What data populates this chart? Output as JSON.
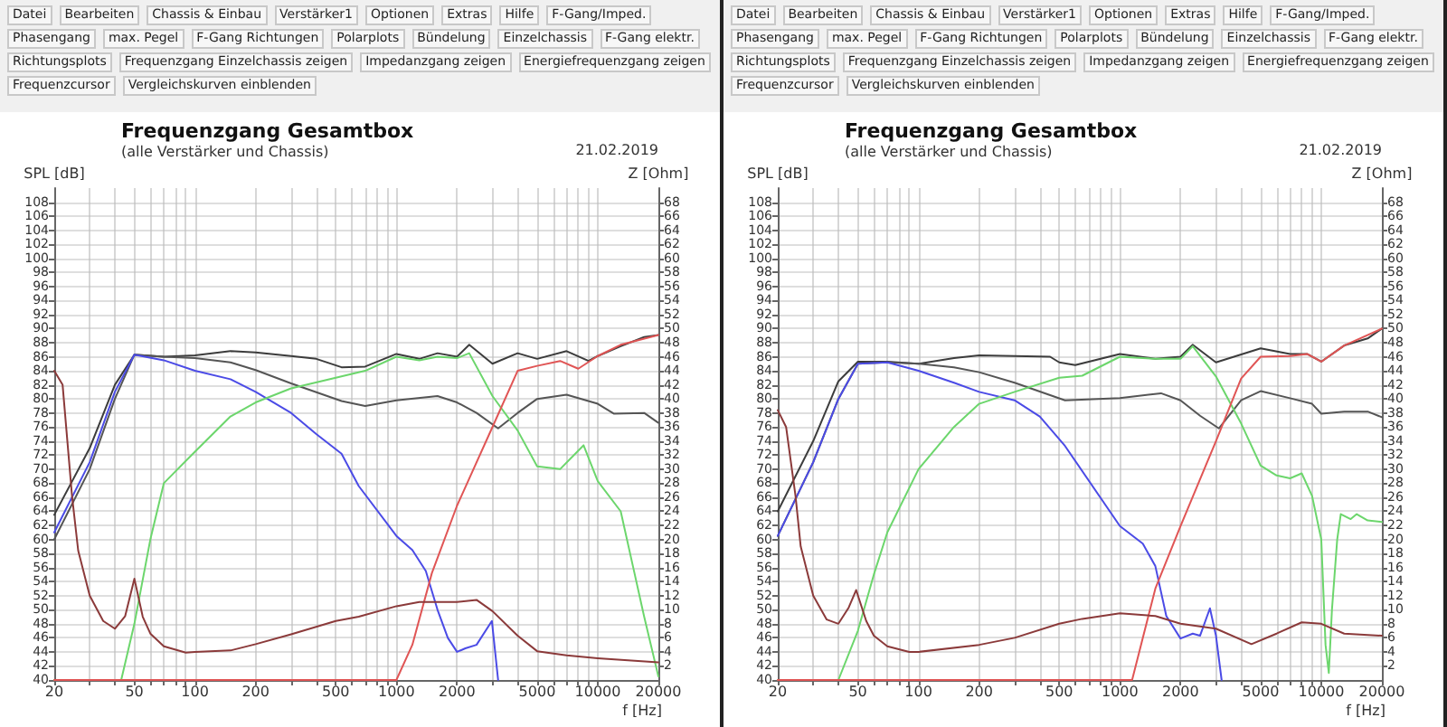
{
  "chart_data": [
    {
      "type": "line",
      "title": "Frequenzgang Gesamtbox",
      "subtitle": "(alle Verstärker und Chassis)",
      "xlabel": "f [Hz]",
      "ylabel": "SPL [dB]",
      "y2label": "Z [Ohm]",
      "annotations": [
        "21.02.2019",
        "Datei",
        "Bearbeiten",
        "Chassis & Einbau",
        "Verstärker1",
        "Optionen",
        "Extras",
        "Hilfe",
        "F-Gang/Imped.",
        "Phasengang",
        "max. Pegel",
        "F-Gang Richtungen",
        "Polarplots",
        "Bündelung",
        "Einzelchassis",
        "F-Gang elektr.",
        "Richtungsplots",
        "Frequenzgang Einzelchassis zeigen",
        "Impedanzgang zeigen",
        "Energiefrequenzgang zeigen",
        "Frequenzcursor",
        "Vergleichskurven einblenden"
      ],
      "log": "x",
      "grid": true,
      "marker": "none",
      "line_style": "solid",
      "xlim": [
        20,
        20000
      ],
      "xticks": [
        20,
        {
          "value": 30,
          "label": null
        },
        {
          "value": 40,
          "label": null
        },
        50,
        {
          "value": 60,
          "label": null
        },
        {
          "value": 70,
          "label": null
        },
        {
          "value": 80,
          "label": null
        },
        {
          "value": 90,
          "label": null
        },
        100,
        200,
        {
          "value": 300,
          "label": null
        },
        {
          "value": 400,
          "label": null
        },
        500,
        {
          "value": 600,
          "label": null
        },
        {
          "value": 700,
          "label": null
        },
        {
          "value": 800,
          "label": null
        },
        {
          "value": 900,
          "label": null
        },
        1000,
        2000,
        {
          "value": 3000,
          "label": null
        },
        {
          "value": 4000,
          "label": null
        },
        5000,
        {
          "value": 6000,
          "label": null
        },
        {
          "value": 7000,
          "label": null
        },
        {
          "value": 8000,
          "label": null
        },
        {
          "value": 9000,
          "label": null
        },
        10000,
        20000
      ],
      "ylim": [
        40,
        110
      ],
      "yticks": [
        40,
        42,
        44,
        46,
        48,
        50,
        52,
        54,
        56,
        58,
        60,
        62,
        64,
        66,
        68,
        70,
        72,
        74,
        76,
        78,
        80,
        82,
        84,
        86,
        88,
        90,
        92,
        94,
        96,
        98,
        100,
        102,
        104,
        106,
        108
      ],
      "y2lim": [
        0,
        70
      ],
      "y2ticks": [
        2,
        4,
        6,
        8,
        10,
        12,
        14,
        16,
        18,
        20,
        22,
        24,
        26,
        28,
        30,
        32,
        34,
        36,
        38,
        40,
        42,
        44,
        46,
        48,
        50,
        52,
        54,
        56,
        58,
        60,
        62,
        64,
        66,
        68
      ],
      "series": [
        {
          "color": "#3c3c3c",
          "x": [
            20,
            30,
            40,
            50,
            70,
            100,
            150,
            200,
            300,
            400,
            534,
            700,
            1000,
            1300,
            1600,
            2000,
            2300,
            3000,
            4000,
            5000,
            7000,
            9000,
            10000,
            13000,
            17000,
            20000
          ],
          "values": [
            63.5,
            73,
            82,
            86.3,
            86,
            86.2,
            86.8,
            86.6,
            86.1,
            85.7,
            84.5,
            84.6,
            86.4,
            85.7,
            86.5,
            86,
            87.7,
            85,
            86.5,
            85.7,
            86.8,
            85.4,
            86.1,
            87.5,
            88.8,
            89.1
          ]
        },
        {
          "color": "#555555",
          "x": [
            20,
            30,
            40,
            50,
            70,
            100,
            150,
            200,
            300,
            534,
            700,
            1000,
            1600,
            2000,
            2500,
            3200,
            4000,
            5000,
            7000,
            10000,
            12000,
            17000,
            20000
          ],
          "values": [
            60,
            70,
            80,
            86.3,
            86,
            85.8,
            85.2,
            84.1,
            82.2,
            79.7,
            79,
            79.8,
            80.4,
            79.5,
            78,
            75.8,
            78,
            80,
            80.6,
            79.3,
            77.9,
            78,
            76.6
          ]
        },
        {
          "color": "#4b4be6",
          "x": [
            20,
            30,
            40,
            50,
            70,
            100,
            150,
            200,
            300,
            400,
            534,
            650,
            1000,
            1200,
            1400,
            1600,
            1800,
            2000,
            2200,
            2500,
            2980,
            3200
          ],
          "values": [
            61,
            71,
            81,
            86.3,
            85.5,
            84,
            82.8,
            81,
            78,
            75,
            72.2,
            67.6,
            60.5,
            58.5,
            55.5,
            50,
            46,
            44,
            44.5,
            45,
            48.4,
            40
          ]
        },
        {
          "color": "#6cd66c",
          "x": [
            20,
            43,
            50,
            60,
            70,
            100,
            150,
            200,
            300,
            500,
            700,
            1000,
            1300,
            1600,
            2000,
            2300,
            3000,
            4000,
            5000,
            6500,
            8500,
            10000,
            13000,
            15000,
            17000,
            20000
          ],
          "values": [
            40,
            40,
            48,
            60,
            68,
            72.5,
            77.5,
            79.5,
            81.5,
            83,
            84,
            86,
            85.5,
            86,
            85.8,
            86.5,
            80.4,
            75.5,
            70.4,
            70,
            73.4,
            68.3,
            64,
            56,
            49,
            40.5
          ]
        },
        {
          "color": "#e05555",
          "x": [
            20,
            1000,
            1200,
            1500,
            2000,
            3000,
            4000,
            5000,
            6500,
            8000,
            10000,
            13000,
            20000
          ],
          "values": [
            40,
            40,
            45,
            55.2,
            64.8,
            76,
            84,
            84.7,
            85.4,
            84.3,
            86.1,
            87.7,
            89.1
          ]
        },
        {
          "color": "#8b3a3a",
          "axis": "y2",
          "x": [
            20,
            22,
            24.5,
            26.3,
            30,
            35,
            40,
            45,
            50,
            55,
            60,
            70,
            90,
            100,
            150,
            200,
            300,
            500,
            650,
            1000,
            1300,
            2000,
            2500,
            3000,
            4000,
            5000,
            7000,
            10000,
            20000
          ],
          "values": [
            44,
            42,
            26.2,
            18.4,
            12,
            8.4,
            7.3,
            9.1,
            14.4,
            9,
            6.6,
            4.8,
            3.9,
            4,
            4.2,
            5.1,
            6.5,
            8.4,
            9,
            10.5,
            11.1,
            11.1,
            11.4,
            9.8,
            6.3,
            4.1,
            3.5,
            3.1,
            2.5
          ]
        }
      ]
    },
    {
      "type": "line",
      "title": "Frequenzgang Gesamtbox",
      "subtitle": "(alle Verstärker und Chassis)",
      "xlabel": "f [Hz]",
      "ylabel": "SPL [dB]",
      "y2label": "Z [Ohm]",
      "annotations": [
        "21.02.2019",
        "Datei",
        "Bearbeiten",
        "Chassis & Einbau",
        "Verstärker1",
        "Optionen",
        "Extras",
        "Hilfe",
        "F-Gang/Imped.",
        "Phasengang",
        "max. Pegel",
        "F-Gang Richtungen",
        "Polarplots",
        "Bündelung",
        "Einzelchassis",
        "F-Gang elektr.",
        "Richtungsplots",
        "Frequenzgang Einzelchassis zeigen",
        "Impedanzgang zeigen",
        "Energiefrequenzgang zeigen",
        "Frequenzcursor",
        "Vergleichskurven einblenden"
      ],
      "log": "x",
      "grid": true,
      "marker": "none",
      "line_style": "solid",
      "xlim": [
        20,
        20000
      ],
      "xticks": [
        20,
        {
          "value": 30,
          "label": null
        },
        {
          "value": 40,
          "label": null
        },
        50,
        {
          "value": 60,
          "label": null
        },
        {
          "value": 70,
          "label": null
        },
        {
          "value": 80,
          "label": null
        },
        {
          "value": 90,
          "label": null
        },
        100,
        200,
        {
          "value": 300,
          "label": null
        },
        {
          "value": 400,
          "label": null
        },
        500,
        {
          "value": 600,
          "label": null
        },
        {
          "value": 700,
          "label": null
        },
        {
          "value": 800,
          "label": null
        },
        {
          "value": 900,
          "label": null
        },
        1000,
        2000,
        {
          "value": 3000,
          "label": null
        },
        {
          "value": 4000,
          "label": null
        },
        5000,
        {
          "value": 6000,
          "label": null
        },
        {
          "value": 7000,
          "label": null
        },
        {
          "value": 8000,
          "label": null
        },
        {
          "value": 9000,
          "label": null
        },
        10000,
        20000
      ],
      "ylim": [
        40,
        110
      ],
      "yticks": [
        40,
        42,
        44,
        46,
        48,
        50,
        52,
        54,
        56,
        58,
        60,
        62,
        64,
        66,
        68,
        70,
        72,
        74,
        76,
        78,
        80,
        82,
        84,
        86,
        88,
        90,
        92,
        94,
        96,
        98,
        100,
        102,
        104,
        106,
        108
      ],
      "y2lim": [
        0,
        70
      ],
      "y2ticks": [
        2,
        4,
        6,
        8,
        10,
        12,
        14,
        16,
        18,
        20,
        22,
        24,
        26,
        28,
        30,
        32,
        34,
        36,
        38,
        40,
        42,
        44,
        46,
        48,
        50,
        52,
        54,
        56,
        58,
        60,
        62,
        64,
        66,
        68
      ],
      "series": [
        {
          "color": "#3c3c3c",
          "x": [
            20,
            30,
            40,
            50,
            70,
            100,
            150,
            200,
            300,
            450,
            500,
            600,
            1000,
            1500,
            2000,
            2300,
            3000,
            5000,
            7000,
            8500,
            10000,
            13000,
            17000,
            20000
          ],
          "values": [
            64,
            74,
            82.5,
            85.3,
            85.3,
            85,
            85.8,
            86.2,
            86.1,
            86,
            85.2,
            84.8,
            86.4,
            85.7,
            86,
            87.7,
            85.2,
            87.2,
            86.4,
            86.4,
            85.3,
            87.6,
            88.6,
            90
          ]
        },
        {
          "color": "#555555",
          "x": [
            20,
            30,
            40,
            50,
            70,
            100,
            150,
            200,
            300,
            534,
            1000,
            1600,
            2000,
            2500,
            3100,
            4000,
            5000,
            7000,
            9000,
            10000,
            13000,
            17000,
            20000
          ],
          "values": [
            60.5,
            71,
            80,
            85,
            85.2,
            85,
            84.5,
            83.8,
            82.3,
            79.8,
            80.1,
            80.8,
            79.8,
            77.6,
            75.8,
            79.8,
            81.1,
            80.1,
            79.3,
            77.9,
            78.2,
            78.2,
            77.4
          ]
        },
        {
          "color": "#4b4be6",
          "x": [
            20,
            30,
            40,
            50,
            70,
            100,
            150,
            200,
            300,
            400,
            534,
            1000,
            1300,
            1500,
            1700,
            2000,
            2300,
            2500,
            2800,
            3000,
            3200
          ],
          "values": [
            60.5,
            71,
            80,
            85,
            85.2,
            84,
            82.3,
            81,
            79.8,
            77.5,
            73.3,
            61.9,
            59.4,
            56.2,
            49.1,
            45.9,
            46.6,
            46.3,
            50.2,
            46.3,
            40
          ]
        },
        {
          "color": "#6cd66c",
          "x": [
            20,
            40,
            50,
            60,
            70,
            100,
            150,
            200,
            300,
            500,
            650,
            1000,
            1500,
            2000,
            2300,
            3000,
            4000,
            5000,
            6000,
            7000,
            8000,
            9000,
            10000,
            10500,
            10900,
            11300,
            12000,
            12500,
            14000,
            15000,
            17000,
            20000
          ],
          "values": [
            40,
            40,
            47,
            55,
            61,
            70,
            76,
            79.3,
            81,
            83,
            83.3,
            86,
            85.7,
            85.7,
            87.5,
            83.2,
            76.5,
            70.5,
            69.1,
            68.7,
            69.4,
            66.2,
            60,
            45,
            41,
            50,
            60,
            63.6,
            62.9,
            63.6,
            62.7,
            62.5
          ]
        },
        {
          "color": "#e05555",
          "x": [
            20,
            1150,
            1500,
            2000,
            3000,
            4000,
            5000,
            7000,
            8500,
            10000,
            13000,
            20000
          ],
          "values": [
            40,
            40,
            53,
            61.9,
            74,
            82.9,
            86,
            86.1,
            86.4,
            85.3,
            87.6,
            90
          ]
        },
        {
          "color": "#8b3a3a",
          "axis": "y2",
          "x": [
            20,
            22,
            24.5,
            26,
            30,
            35,
            40,
            45,
            49,
            55,
            60,
            70,
            90,
            100,
            200,
            300,
            500,
            650,
            1000,
            1500,
            2000,
            3000,
            4500,
            6000,
            8000,
            10000,
            13000,
            20000
          ],
          "values": [
            38.4,
            36,
            26.2,
            19,
            12,
            8.6,
            8,
            10.3,
            12.8,
            8.4,
            6.3,
            4.8,
            4,
            4,
            5,
            6,
            8,
            8.7,
            9.5,
            9.1,
            8,
            7.3,
            5.1,
            6.6,
            8.2,
            8,
            6.6,
            6.3
          ]
        }
      ]
    }
  ]
}
